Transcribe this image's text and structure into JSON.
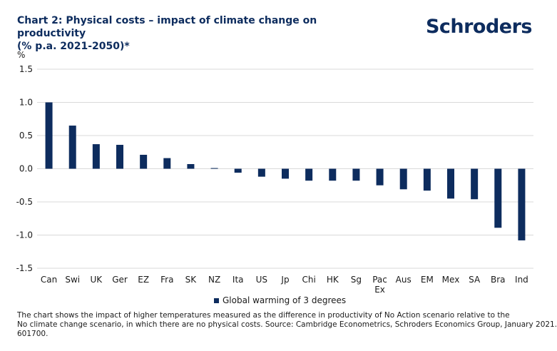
{
  "header": {
    "title_line1": "Chart 2: Physical costs – impact of climate change on productivity",
    "title_line2": "(% p.a. 2021-2050)*",
    "logo_text": "Schroders"
  },
  "footnote": {
    "line1": "The chart shows the impact of higher temperatures measured as the difference in productivity of No Action scenario relative to the",
    "line2": "No climate change scenario, in which there are no physical costs. Source: Cambridge Econometrics, Schroders Economics Group, January 2021.",
    "line3": "601700."
  },
  "colors": {
    "bar": "#0d2c5e",
    "grid": "#d9d9d9",
    "title": "#0d2c5e"
  },
  "chart_data": {
    "type": "bar",
    "title": "Chart 2: Physical costs – impact of climate change on productivity (% p.a. 2021-2050)*",
    "ylabel": "%",
    "xlabel": "",
    "ylim": [
      -1.5,
      1.5
    ],
    "yticks": [
      1.5,
      1.0,
      0.5,
      0.0,
      -0.5,
      -1.0,
      -1.5
    ],
    "ytick_labels": [
      "1.5",
      "1.0",
      "0.5",
      "0.0",
      "-0.5",
      "-1.0",
      "-1.5"
    ],
    "grid": true,
    "legend_position": "bottom",
    "categories": [
      "Can",
      "Swi",
      "UK",
      "Ger",
      "EZ",
      "Fra",
      "SK",
      "NZ",
      "Ita",
      "US",
      "Jp",
      "Chi",
      "HK",
      "Sg",
      "Pac Ex",
      "Aus",
      "EM",
      "Mex",
      "SA",
      "Bra",
      "Ind"
    ],
    "series": [
      {
        "name": "Global warming of 3 degrees",
        "values": [
          1.0,
          0.65,
          0.37,
          0.36,
          0.21,
          0.16,
          0.07,
          0.01,
          -0.06,
          -0.12,
          -0.15,
          -0.18,
          -0.18,
          -0.18,
          -0.25,
          -0.31,
          -0.33,
          -0.45,
          -0.46,
          -0.89,
          -1.08
        ]
      }
    ]
  }
}
